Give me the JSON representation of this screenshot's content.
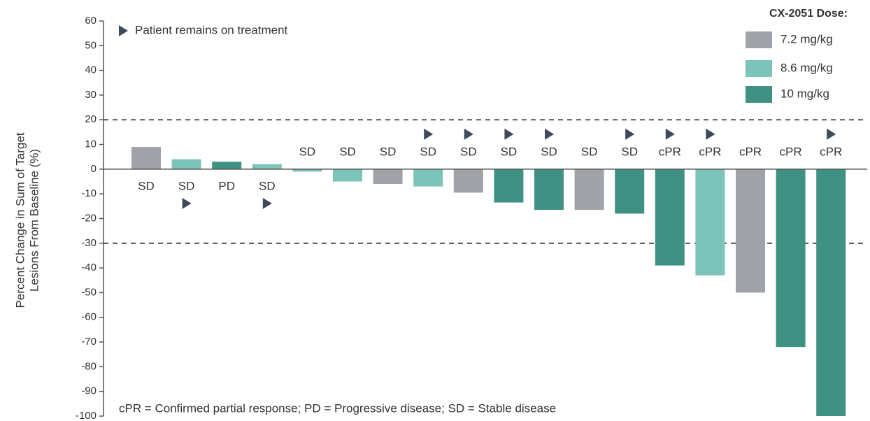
{
  "chart_data": {
    "type": "bar",
    "y_label_lines": [
      "Percent Change in Sum of Target",
      "Lesions From Baseline (%)"
    ],
    "legend_title": "CX-2051 Dose:",
    "series": [
      {
        "name": "7.2 mg/kg",
        "color": "#9fa3a8",
        "values": [
          9,
          null,
          null,
          null,
          null,
          null,
          -6,
          null,
          -9.5,
          null,
          null,
          -16.5,
          null,
          null,
          null,
          -50,
          null,
          null
        ]
      },
      {
        "name": "8.6 mg/kg",
        "color": "#7cc4b9",
        "values": [
          null,
          4,
          null,
          2,
          -1,
          -5,
          null,
          -7,
          null,
          null,
          null,
          null,
          null,
          null,
          -43,
          null,
          null,
          null
        ]
      },
      {
        "name": "10 mg/kg",
        "color": "#3f9183",
        "values": [
          null,
          null,
          3,
          null,
          null,
          null,
          null,
          null,
          null,
          -13.5,
          -16.5,
          null,
          -18,
          -39,
          null,
          null,
          -72,
          -100
        ]
      }
    ],
    "status": [
      "SD",
      "SD",
      "PD",
      "SD",
      "SD",
      "SD",
      "SD",
      "SD",
      "SD",
      "SD",
      "SD",
      "SD",
      "SD",
      "cPR",
      "cPR",
      "cPR",
      "cPR",
      "cPR"
    ],
    "on_treatment": [
      false,
      true,
      false,
      true,
      false,
      false,
      false,
      true,
      true,
      true,
      true,
      false,
      true,
      true,
      true,
      false,
      false,
      true
    ],
    "marker_note": "Patient remains on treatment",
    "footnote": "cPR = Confirmed partial response; PD = Progressive disease; SD = Stable disease",
    "reference_lines": [
      20,
      -30
    ],
    "ylim": [
      -100,
      60
    ],
    "yticks": [
      -100,
      -90,
      -80,
      -70,
      -60,
      -50,
      -40,
      -30,
      -20,
      -10,
      0,
      10,
      20,
      30,
      40,
      50,
      60
    ]
  }
}
